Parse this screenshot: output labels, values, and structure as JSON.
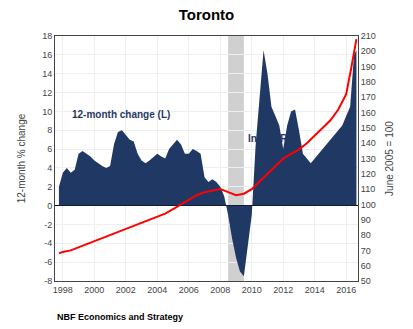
{
  "chart_data": {
    "type": "area",
    "title": "Toronto",
    "ylabel": "12-month % change",
    "y2label": "June 2005 = 100",
    "footnote": "NBF Economics and Strategy",
    "annotations": [
      "12-month change (L)",
      "Index (R)"
    ],
    "grid": true,
    "shading": [
      {
        "x0": 2008.5,
        "x1": 2009.5,
        "color": "#C8C8C8"
      }
    ],
    "xlim": [
      1997.5,
      2016.75
    ],
    "xticks": [
      1998,
      2000,
      2002,
      2004,
      2006,
      2008,
      2010,
      2012,
      2014,
      2016
    ],
    "ylim": [
      -8,
      18
    ],
    "yticks": [
      -8,
      -6,
      -4,
      -2,
      0,
      2,
      4,
      6,
      8,
      10,
      12,
      14,
      16,
      18
    ],
    "y2lim": [
      50,
      210
    ],
    "y2ticks": [
      50,
      60,
      70,
      80,
      90,
      100,
      110,
      120,
      130,
      140,
      150,
      160,
      170,
      180,
      190,
      200,
      210
    ],
    "series": [
      {
        "type": "area",
        "color": "#1F3864",
        "x": [
          1997.75,
          1998.0,
          1998.25,
          1998.5,
          1998.75,
          1999.0,
          1999.25,
          1999.5,
          1999.75,
          2000.0,
          2000.25,
          2000.5,
          2000.75,
          2001.0,
          2001.25,
          2001.5,
          2001.75,
          2002.0,
          2002.25,
          2002.5,
          2002.75,
          2003.0,
          2003.25,
          2003.5,
          2003.75,
          2004.0,
          2004.25,
          2004.5,
          2004.75,
          2005.0,
          2005.25,
          2005.5,
          2005.75,
          2006.0,
          2006.25,
          2006.5,
          2006.75,
          2007.0,
          2007.25,
          2007.5,
          2007.75,
          2008.0,
          2008.25,
          2008.5,
          2008.75,
          2009.0,
          2009.25,
          2009.5,
          2009.75,
          2010.0,
          2010.25,
          2010.5,
          2010.75,
          2011.0,
          2011.25,
          2011.5,
          2011.75,
          2012.0,
          2012.25,
          2012.5,
          2012.75,
          2013.0,
          2013.25,
          2013.5,
          2013.75,
          2014.0,
          2014.25,
          2014.5,
          2014.75,
          2015.0,
          2015.25,
          2015.5,
          2015.75,
          2016.0,
          2016.25,
          2016.5,
          2016.65
        ],
        "values": [
          2.0,
          3.5,
          4.0,
          3.5,
          3.8,
          5.5,
          5.8,
          5.5,
          5.2,
          4.8,
          4.5,
          4.2,
          4.0,
          4.2,
          6.5,
          7.8,
          8.0,
          7.5,
          7.0,
          6.8,
          5.5,
          4.8,
          4.5,
          4.8,
          5.2,
          5.5,
          5.2,
          5.0,
          6.0,
          6.5,
          7.0,
          6.5,
          5.5,
          5.5,
          6.0,
          5.8,
          5.5,
          3.0,
          2.5,
          2.8,
          2.5,
          2.0,
          1.0,
          -1.0,
          -3.5,
          -5.5,
          -7.0,
          -7.5,
          -4.0,
          -1.0,
          6.5,
          11.5,
          16.5,
          14.0,
          10.5,
          9.5,
          8.5,
          6.0,
          8.5,
          10.0,
          10.2,
          8.0,
          5.5,
          5.0,
          4.5,
          5.0,
          5.5,
          6.0,
          6.5,
          7.0,
          7.5,
          8.0,
          8.5,
          9.5,
          10.5,
          16.0,
          16.5
        ]
      },
      {
        "type": "line",
        "color": "#FF0000",
        "axis": "y2",
        "x": [
          1997.75,
          1998.0,
          1998.5,
          1999.0,
          1999.5,
          2000.0,
          2000.5,
          2001.0,
          2001.5,
          2002.0,
          2002.5,
          2003.0,
          2003.5,
          2004.0,
          2004.5,
          2005.0,
          2005.5,
          2006.0,
          2006.5,
          2007.0,
          2007.5,
          2008.0,
          2008.5,
          2009.0,
          2009.5,
          2010.0,
          2010.5,
          2011.0,
          2011.5,
          2012.0,
          2012.5,
          2013.0,
          2013.5,
          2014.0,
          2014.5,
          2015.0,
          2015.5,
          2016.0,
          2016.3,
          2016.65
        ],
        "values": [
          68,
          69,
          70,
          72,
          74,
          76,
          78,
          80,
          82,
          84,
          86,
          88,
          90,
          92,
          94,
          97,
          100,
          103,
          106,
          108,
          109,
          110,
          108,
          106,
          107,
          110,
          115,
          120,
          125,
          130,
          133,
          136,
          140,
          145,
          150,
          155,
          162,
          172,
          188,
          208
        ]
      }
    ]
  }
}
